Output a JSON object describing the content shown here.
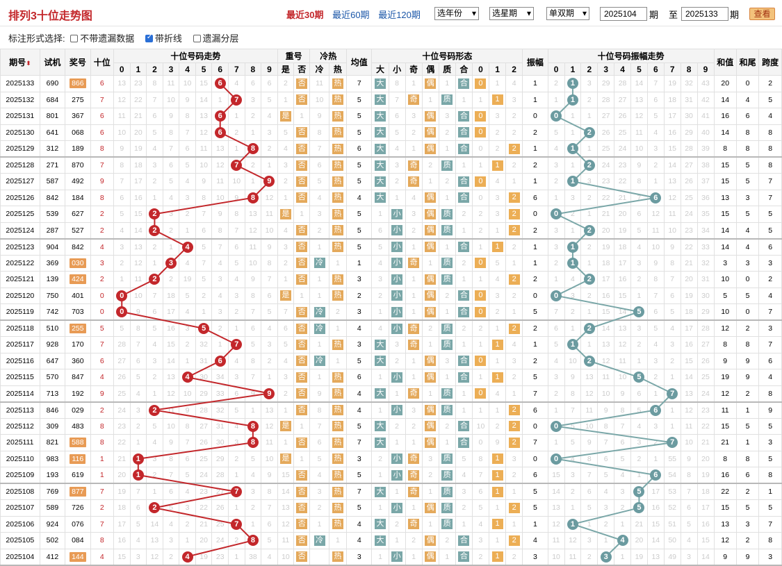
{
  "title": "排列3十位走势图",
  "periods": [
    "最近30期",
    "最近60期",
    "最近120期"
  ],
  "selects": [
    "选年份",
    "选星期",
    "单双期"
  ],
  "from": "2025104",
  "period_label": "期",
  "to_label": "至",
  "to": "2025133",
  "query": "查看",
  "options_label": "标注形式选择:",
  "options": [
    {
      "label": "不带遗漏数据",
      "on": false
    },
    {
      "label": "带折线",
      "on": true
    },
    {
      "label": "遗漏分层",
      "on": false
    }
  ],
  "headers": {
    "issue": "期号",
    "sj": "试机",
    "jh": "奖号",
    "sw": "十位",
    "trend": "十位号码走势",
    "chong": "重号",
    "shi": "是",
    "fou": "否",
    "lr": "冷热",
    "leng": "冷",
    "re": "热",
    "jz": "均值",
    "form": "十位号码形态",
    "da": "大",
    "xiao": "小",
    "ji": "奇",
    "ou": "偶",
    "zhi": "质",
    "he": "合",
    "zf": "振幅",
    "amp": "十位号码振幅走势",
    "hz": "和值",
    "hw": "和尾",
    "kd": "跨度",
    "digits": [
      "0",
      "1",
      "2",
      "3",
      "4",
      "5",
      "6",
      "7",
      "8",
      "9"
    ],
    "r012": [
      "0",
      "1",
      "2"
    ]
  },
  "rows": [
    [
      "2025133",
      "690",
      "866",
      true,
      6,
      [
        "13",
        "23",
        "8",
        "11",
        "10",
        "15",
        "",
        "4",
        "6",
        "6"
      ],
      "2",
      "否",
      "11",
      "热",
      "7",
      [
        "大",
        "8",
        "1",
        "偶",
        "1",
        "合",
        "0",
        "1",
        "4"
      ],
      "1",
      [
        "2",
        "1",
        "3",
        "29",
        "28",
        "14",
        "7",
        "19",
        "32",
        "43"
      ],
      1,
      "20",
      "0",
      "2"
    ],
    [
      "2025132",
      "684",
      "275",
      false,
      7,
      [
        "12",
        "22",
        "7",
        "10",
        "9",
        "14",
        "1",
        "",
        "3",
        "5"
      ],
      "1",
      "否",
      "10",
      "热",
      "5",
      [
        "大",
        "7",
        "奇",
        "1",
        "质",
        "1",
        "1",
        "1",
        "3"
      ],
      "1",
      [
        "1",
        "1",
        "2",
        "28",
        "27",
        "13",
        "6",
        "18",
        "31",
        "42"
      ],
      1,
      "14",
      "4",
      "5"
    ],
    [
      "2025131",
      "801",
      "367",
      false,
      6,
      [
        "11",
        "21",
        "6",
        "9",
        "8",
        "13",
        "",
        "1",
        "2",
        "4"
      ],
      "是",
      "1",
      "9",
      "热",
      "5",
      [
        "大",
        "6",
        "3",
        "偶",
        "3",
        "合",
        "0",
        "3",
        "2"
      ],
      "0",
      [
        "",
        "1",
        "1",
        "27",
        "26",
        "12",
        "5",
        "17",
        "30",
        "41"
      ],
      0,
      "16",
      "6",
      "4"
    ],
    [
      "2025130",
      "641",
      "068",
      false,
      6,
      [
        "10",
        "20",
        "5",
        "8",
        "7",
        "12",
        "",
        "2",
        "1",
        "3"
      ],
      "5",
      "否",
      "8",
      "热",
      "5",
      [
        "大",
        "5",
        "2",
        "偶",
        "2",
        "合",
        "0",
        "2",
        "2"
      ],
      "2",
      [
        "5",
        "1",
        "",
        "26",
        "25",
        "11",
        "4",
        "16",
        "29",
        "40"
      ],
      2,
      "14",
      "8",
      "8"
    ],
    [
      "2025129",
      "312",
      "189",
      false,
      8,
      [
        "9",
        "19",
        "4",
        "7",
        "6",
        "11",
        "13",
        "1",
        "",
        "2"
      ],
      "4",
      "否",
      "7",
      "热",
      "6",
      [
        "大",
        "4",
        "1",
        "偶",
        "1",
        "合",
        "0",
        "2",
        "2"
      ],
      "1",
      [
        "4",
        "1",
        "1",
        "25",
        "24",
        "10",
        "3",
        "15",
        "28",
        "39"
      ],
      1,
      "8",
      "8",
      "8"
    ],
    [
      "2025128",
      "271",
      "870",
      false,
      7,
      [
        "8",
        "18",
        "3",
        "6",
        "5",
        "10",
        "12",
        "",
        "2",
        "1"
      ],
      "3",
      "否",
      "6",
      "热",
      "5",
      [
        "大",
        "3",
        "奇",
        "2",
        "质",
        "1",
        "1",
        "1",
        "2"
      ],
      "2",
      [
        "3",
        "1",
        "",
        "24",
        "23",
        "9",
        "2",
        "14",
        "27",
        "38"
      ],
      2,
      "15",
      "5",
      "8"
    ],
    [
      "2025127",
      "587",
      "492",
      false,
      9,
      [
        "7",
        "17",
        "2",
        "5",
        "4",
        "9",
        "11",
        "10",
        "1",
        ""
      ],
      "2",
      "否",
      "5",
      "热",
      "5",
      [
        "大",
        "2",
        "奇",
        "1",
        "2",
        "合",
        "0",
        "4",
        "1"
      ],
      "1",
      [
        "2",
        "1",
        "3",
        "23",
        "22",
        "8",
        "1",
        "13",
        "26",
        "37"
      ],
      1,
      "15",
      "5",
      "7"
    ],
    [
      "2025126",
      "842",
      "184",
      false,
      8,
      [
        "6",
        "16",
        "1",
        "4",
        "3",
        "8",
        "10",
        "9",
        "",
        "12"
      ],
      "1",
      "否",
      "4",
      "热",
      "4",
      [
        "大",
        "1",
        "4",
        "偶",
        "1",
        "合",
        "0",
        "3",
        "2"
      ],
      "6",
      [
        "1",
        "3",
        "2",
        "22",
        "21",
        "7",
        "",
        "12",
        "25",
        "36"
      ],
      6,
      "13",
      "3",
      "7"
    ],
    [
      "2025125",
      "539",
      "627",
      false,
      2,
      [
        "5",
        "15",
        "",
        "3",
        "2",
        "7",
        "9",
        "8",
        "13",
        "11"
      ],
      "是",
      "1",
      "3",
      "热",
      "5",
      [
        "1",
        "小",
        "3",
        "偶",
        "质",
        "2",
        "2",
        "3",
        "2"
      ],
      "0",
      [
        "",
        "2",
        "1",
        "21",
        "20",
        "6",
        "12",
        "11",
        "24",
        "35"
      ],
      0,
      "15",
      "5",
      "5"
    ],
    [
      "2025124",
      "287",
      "527",
      false,
      2,
      [
        "4",
        "14",
        "",
        "2",
        "1",
        "6",
        "8",
        "7",
        "12",
        "10"
      ],
      "4",
      "否",
      "2",
      "热",
      "5",
      [
        "6",
        "小",
        "2",
        "偶",
        "质",
        "1",
        "2",
        "1",
        "2"
      ],
      "2",
      [
        "3",
        "1",
        "",
        "20",
        "19",
        "5",
        "11",
        "10",
        "23",
        "34"
      ],
      2,
      "14",
      "4",
      "5"
    ],
    [
      "2025123",
      "904",
      "842",
      false,
      4,
      [
        "3",
        "13",
        "2",
        "1",
        "",
        "5",
        "7",
        "6",
        "11",
        "9"
      ],
      "3",
      "否",
      "1",
      "热",
      "5",
      [
        "5",
        "小",
        "1",
        "偶",
        "1",
        "合",
        "1",
        "1",
        "2"
      ],
      "1",
      [
        "3",
        "1",
        "2",
        "19",
        "18",
        "4",
        "10",
        "9",
        "22",
        "33"
      ],
      1,
      "14",
      "4",
      "6"
    ],
    [
      "2025122",
      "369",
      "030",
      true,
      3,
      [
        "2",
        "12",
        "1",
        "",
        "4",
        "7",
        "4",
        "5",
        "10",
        "8"
      ],
      "2",
      "否",
      "冷",
      "1",
      "1",
      [
        "4",
        "小",
        "奇",
        "1",
        "质",
        "2",
        "0",
        "5",
        "1"
      ],
      "1",
      [
        "2",
        "1",
        "1",
        "18",
        "17",
        "3",
        "9",
        "8",
        "21",
        "32"
      ],
      1,
      "3",
      "3",
      "3"
    ],
    [
      "2025121",
      "139",
      "424",
      true,
      2,
      [
        "1",
        "11",
        "",
        "2",
        "19",
        "5",
        "3",
        "4",
        "9",
        "7"
      ],
      "1",
      "否",
      "1",
      "热",
      "3",
      [
        "3",
        "小",
        "1",
        "偶",
        "质",
        "1",
        "1",
        "4",
        "2"
      ],
      "2",
      [
        "1",
        "4",
        "",
        "17",
        "16",
        "2",
        "8",
        "7",
        "20",
        "31"
      ],
      2,
      "10",
      "0",
      "2"
    ],
    [
      "2025120",
      "750",
      "401",
      false,
      0,
      [
        "",
        "10",
        "7",
        "18",
        "5",
        "2",
        "4",
        "3",
        "8",
        "6"
      ],
      "是",
      "1",
      "1",
      "热",
      "2",
      [
        "2",
        "小",
        "1",
        "偶",
        "2",
        "合",
        "0",
        "3",
        "2"
      ],
      "0",
      [
        "",
        "3",
        "2",
        "16",
        "15",
        "1",
        "7",
        "6",
        "19",
        "30"
      ],
      0,
      "5",
      "5",
      "4"
    ],
    [
      "2025119",
      "742",
      "703",
      false,
      0,
      [
        "",
        "9",
        "6",
        "17",
        "4",
        "1",
        "3",
        "2",
        "7",
        "5"
      ],
      "7",
      "否",
      "冷",
      "2",
      "3",
      [
        "1",
        "小",
        "1",
        "偶",
        "1",
        "合",
        "0",
        "2",
        "1"
      ],
      "5",
      [
        "7",
        "2",
        "1",
        "15",
        "14",
        "",
        "6",
        "5",
        "18",
        "29"
      ],
      5,
      "10",
      "0",
      "7"
    ],
    [
      "2025118",
      "510",
      "255",
      true,
      5,
      [
        "5",
        "8",
        "5",
        "16",
        "3",
        "",
        "2",
        "1",
        "6",
        "4"
      ],
      "6",
      "否",
      "冷",
      "1",
      "4",
      [
        "4",
        "小",
        "奇",
        "2",
        "质",
        "2",
        "2",
        "1",
        "1"
      ],
      "2",
      [
        "6",
        "1",
        "",
        "14",
        "13",
        "3",
        "5",
        "4",
        "17",
        "28"
      ],
      2,
      "12",
      "2",
      "3"
    ],
    [
      "2025117",
      "928",
      "170",
      false,
      7,
      [
        "28",
        "7",
        "4",
        "15",
        "2",
        "32",
        "1",
        "",
        "5",
        "3"
      ],
      "5",
      "否",
      "1",
      "热",
      "3",
      [
        "大",
        "3",
        "奇",
        "1",
        "质",
        "1",
        "1",
        "1",
        "4"
      ],
      "1",
      [
        "5",
        "1",
        "1",
        "13",
        "12",
        "2",
        "4",
        "3",
        "16",
        "27"
      ],
      1,
      "8",
      "8",
      "7"
    ],
    [
      "2025116",
      "647",
      "360",
      false,
      6,
      [
        "27",
        "6",
        "3",
        "14",
        "1",
        "31",
        "",
        "4",
        "8",
        "2"
      ],
      "4",
      "否",
      "冷",
      "1",
      "5",
      [
        "大",
        "2",
        "1",
        "偶",
        "3",
        "合",
        "0",
        "1",
        "3"
      ],
      "2",
      [
        "4",
        "10",
        "",
        "12",
        "11",
        "1",
        "3",
        "2",
        "15",
        "26"
      ],
      2,
      "9",
      "9",
      "6"
    ],
    [
      "2025115",
      "570",
      "847",
      false,
      4,
      [
        "26",
        "5",
        "2",
        "13",
        "",
        "30",
        "34",
        "3",
        "7",
        "1"
      ],
      "3",
      "否",
      "1",
      "热",
      "6",
      [
        "1",
        "小",
        "1",
        "偶",
        "1",
        "合",
        "1",
        "1",
        "2"
      ],
      "5",
      [
        "3",
        "9",
        "13",
        "11",
        "10",
        "",
        "2",
        "1",
        "14",
        "25"
      ],
      5,
      "19",
      "9",
      "4"
    ],
    [
      "2025114",
      "713",
      "192",
      false,
      9,
      [
        "25",
        "4",
        "1",
        "12",
        "10",
        "29",
        "33",
        "6",
        "9",
        ""
      ],
      "2",
      "否",
      "9",
      "热",
      "4",
      [
        "大",
        "1",
        "奇",
        "1",
        "质",
        "1",
        "0",
        "4",
        "1"
      ],
      "7",
      [
        "2",
        "8",
        "12",
        "10",
        "9",
        "6",
        "1",
        "",
        "13",
        "24"
      ],
      7,
      "12",
      "2",
      "8"
    ],
    [
      "2025113",
      "846",
      "029",
      false,
      2,
      [
        "24",
        "3",
        "",
        "11",
        "9",
        "28",
        "32",
        "5",
        "1",
        "13"
      ],
      "1",
      "否",
      "8",
      "热",
      "4",
      [
        "1",
        "小",
        "3",
        "偶",
        "质",
        "1",
        "1",
        "1",
        "2"
      ],
      "6",
      [
        "1",
        "7",
        "11",
        "9",
        "8",
        "5",
        "",
        "1",
        "12",
        "23"
      ],
      6,
      "11",
      "1",
      "9"
    ],
    [
      "2025112",
      "309",
      "483",
      false,
      8,
      [
        "23",
        "2",
        "5",
        "10",
        "8",
        "27",
        "31",
        "4",
        "",
        "12"
      ],
      "是",
      "1",
      "7",
      "热",
      "5",
      [
        "大",
        "2",
        "2",
        "偶",
        "2",
        "合",
        "10",
        "2",
        "2"
      ],
      "0",
      [
        "",
        "5",
        "10",
        "8",
        "7",
        "4",
        "3",
        "1",
        "11",
        "22"
      ],
      0,
      "15",
      "5",
      "5"
    ],
    [
      "2025111",
      "821",
      "588",
      true,
      8,
      [
        "22",
        "1",
        "4",
        "9",
        "7",
        "26",
        "30",
        "3",
        "",
        "11"
      ],
      "1",
      "否",
      "6",
      "热",
      "7",
      [
        "大",
        "1",
        "1",
        "偶",
        "1",
        "合",
        "0",
        "9",
        "1"
      ],
      "7",
      [
        "1",
        "5",
        "9",
        "7",
        "6",
        "3",
        "2",
        "",
        "10",
        "21"
      ],
      7,
      "21",
      "1",
      "3"
    ],
    [
      "2025110",
      "983",
      "116",
      true,
      1,
      [
        "21",
        "",
        "3",
        "8",
        "6",
        "25",
        "29",
        "2",
        "5",
        "10"
      ],
      "是",
      "1",
      "5",
      "热",
      "3",
      [
        "2",
        "小",
        "奇",
        "3",
        "质",
        "5",
        "8",
        "1",
        "3"
      ],
      "0",
      [
        "",
        "4",
        "8",
        "6",
        "5",
        "2",
        "1",
        "55",
        "9",
        "20"
      ],
      0,
      "8",
      "8",
      "5"
    ],
    [
      "2025109",
      "193",
      "619",
      false,
      1,
      [
        "20",
        "",
        "2",
        "7",
        "5",
        "24",
        "28",
        "1",
        "4",
        "9"
      ],
      "15",
      "否",
      "4",
      "热",
      "5",
      [
        "1",
        "小",
        "奇",
        "2",
        "质",
        "4",
        "7",
        "1",
        "2"
      ],
      "6",
      [
        "15",
        "3",
        "7",
        "5",
        "4",
        "1",
        "",
        "54",
        "8",
        "19"
      ],
      6,
      "16",
      "6",
      "8"
    ],
    [
      "2025108",
      "769",
      "877",
      true,
      7,
      [
        "19",
        "7",
        "1",
        "6",
        "4",
        "23",
        "27",
        "",
        "3",
        "8"
      ],
      "14",
      "否",
      "3",
      "热",
      "7",
      [
        "大",
        "1",
        "奇",
        "1",
        "质",
        "3",
        "6",
        "1",
        "1"
      ],
      "5",
      [
        "14",
        "2",
        "6",
        "4",
        "3",
        "",
        "17",
        "53",
        "7",
        "18"
      ],
      5,
      "22",
      "2",
      "1"
    ],
    [
      "2025107",
      "589",
      "726",
      false,
      2,
      [
        "18",
        "6",
        "",
        "5",
        "3",
        "22",
        "26",
        "1",
        "2",
        "7"
      ],
      "13",
      "否",
      "2",
      "热",
      "5",
      [
        "1",
        "小",
        "1",
        "偶",
        "质",
        "2",
        "5",
        "1",
        "2"
      ],
      "5",
      [
        "13",
        "1",
        "5",
        "3",
        "2",
        "",
        "16",
        "52",
        "6",
        "17"
      ],
      5,
      "15",
      "5",
      "5"
    ],
    [
      "2025106",
      "924",
      "076",
      false,
      7,
      [
        "17",
        "5",
        "14",
        "4",
        "2",
        "21",
        "25",
        "",
        "1",
        "6"
      ],
      "12",
      "否",
      "1",
      "热",
      "4",
      [
        "大",
        "2",
        "奇",
        "1",
        "质",
        "1",
        "4",
        "1",
        "1"
      ],
      "1",
      [
        "12",
        "",
        "1",
        "2",
        "1",
        "21",
        "15",
        "51",
        "5",
        "16"
      ],
      1,
      "13",
      "3",
      "7"
    ],
    [
      "2025105",
      "502",
      "084",
      false,
      8,
      [
        "16",
        "4",
        "13",
        "3",
        "1",
        "20",
        "24",
        "2",
        "",
        "5"
      ],
      "11",
      "否",
      "冷",
      "1",
      "4",
      [
        "大",
        "1",
        "2",
        "偶",
        "2",
        "合",
        "3",
        "1",
        "2"
      ],
      "4",
      [
        "11",
        "12",
        "3",
        "1",
        "",
        "20",
        "14",
        "50",
        "4",
        "15"
      ],
      4,
      "12",
      "2",
      "8"
    ],
    [
      "2025104",
      "412",
      "144",
      true,
      4,
      [
        "15",
        "3",
        "12",
        "2",
        "",
        "19",
        "23",
        "1",
        "38",
        "4"
      ],
      "10",
      "否",
      "热",
      "热",
      "3",
      [
        "1",
        "小",
        "1",
        "偶",
        "1",
        "合",
        "2",
        "1",
        "2"
      ],
      "3",
      [
        "10",
        "11",
        "2",
        "",
        "1",
        "19",
        "13",
        "49",
        "3",
        "14"
      ],
      3,
      "9",
      "9",
      "3"
    ]
  ]
}
